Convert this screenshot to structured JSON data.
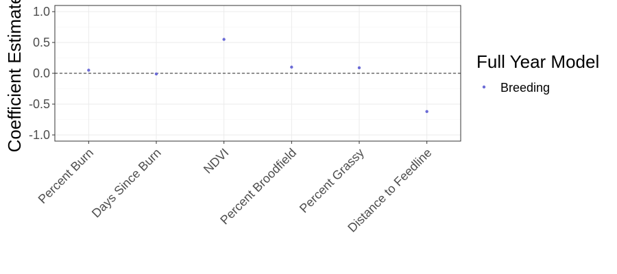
{
  "chart_data": {
    "type": "scatter",
    "categories": [
      "Percent Burn",
      "Days Since Burn",
      "NDVI",
      "Percent Broodfield",
      "Percent Grassy",
      "Distance to Feedline"
    ],
    "series": [
      {
        "name": "Breeding",
        "values": [
          0.05,
          -0.01,
          0.55,
          0.1,
          0.09,
          -0.62
        ],
        "color": "#6b6bd6"
      }
    ],
    "ylabel": "Coefficient Estimate",
    "xlabel": "",
    "title": "",
    "yticks": [
      "-1.0",
      "-0.5",
      "0.0",
      "0.5",
      "1.0"
    ],
    "ylim": [
      -1.1,
      1.1
    ],
    "reference_line": {
      "y": 0,
      "style": "dashed"
    },
    "grid": true,
    "legend": {
      "title": "Full Year Model",
      "placement": "right"
    }
  }
}
